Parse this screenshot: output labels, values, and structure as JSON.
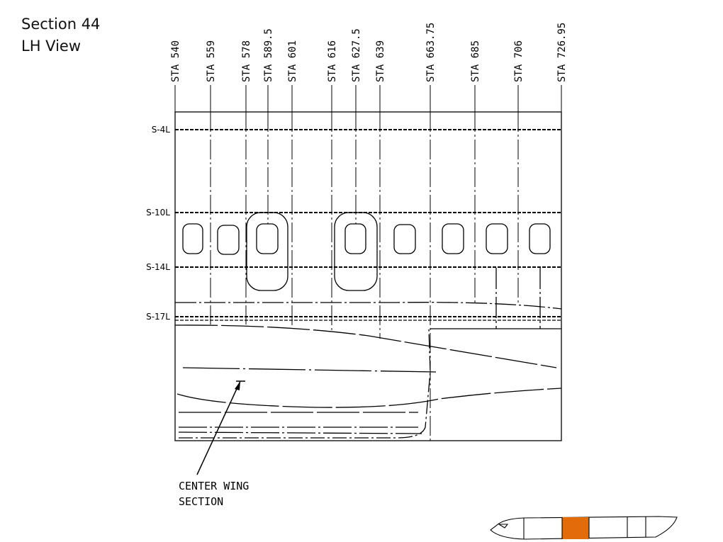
{
  "title": [
    "Section 44",
    "LH View"
  ],
  "stations": [
    {
      "label": "STA 540",
      "value": 540
    },
    {
      "label": "STA 559",
      "value": 559
    },
    {
      "label": "STA 578",
      "value": 578
    },
    {
      "label": "STA 589.5",
      "value": 589.5
    },
    {
      "label": "STA 601",
      "value": 601
    },
    {
      "label": "STA 616",
      "value": 616
    },
    {
      "label": "STA 627.5",
      "value": 627.5
    },
    {
      "label": "STA 639",
      "value": 639
    },
    {
      "label": "STA 663.75",
      "value": 663.75
    },
    {
      "label": "STA 685",
      "value": 685
    },
    {
      "label": "STA 706",
      "value": 706
    },
    {
      "label": "STA 726.95",
      "value": 726.95
    }
  ],
  "stringers": [
    "S-4L",
    "S-10L",
    "S-14L",
    "S-17L"
  ],
  "callout": [
    "CENTER WING",
    "SECTION"
  ],
  "highlight_color": "#e36c0a",
  "line_color": "#000000"
}
